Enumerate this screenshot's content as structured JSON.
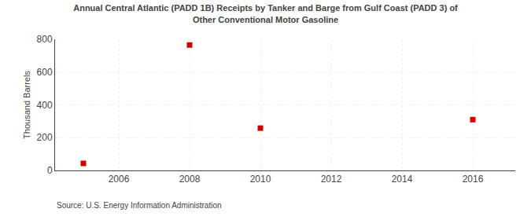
{
  "chart_data": {
    "type": "scatter",
    "title": "Annual Central Atlantic (PADD 1B) Receipts by Tanker and Barge from Gulf Coast (PADD 3) of\nOther Conventional Motor Gasoline",
    "ylabel": "Thousand Barrels",
    "annotations": [
      "Source: U.S. Energy Information Administration"
    ],
    "x": [
      2005,
      2008,
      2010,
      2016
    ],
    "values": [
      43,
      765,
      258,
      310
    ],
    "color": "#cc0000",
    "marker": "square",
    "xlim": [
      2004.2,
      2017.2
    ],
    "ylim": [
      0,
      800
    ],
    "xticks": [
      2006,
      2008,
      2010,
      2012,
      2014,
      2016
    ],
    "yticks": [
      0,
      200,
      400,
      600,
      800
    ],
    "grid": true
  }
}
